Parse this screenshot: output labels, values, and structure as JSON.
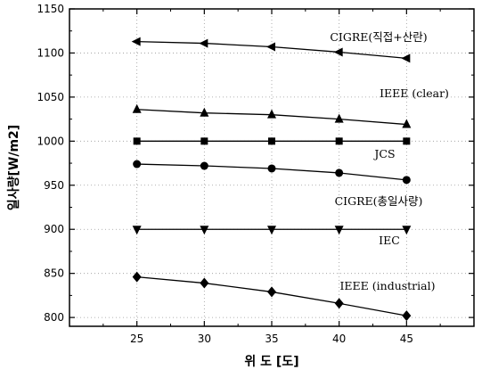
{
  "chart_data": {
    "type": "line",
    "xlabel": "위 도 [도]",
    "ylabel": "일사량[W/m2]",
    "x": [
      25,
      30,
      35,
      40,
      45
    ],
    "xlim": [
      20,
      50
    ],
    "ylim": [
      790,
      1150
    ],
    "xticks": [
      "25",
      "30",
      "35",
      "40",
      "45"
    ],
    "yticks": [
      "800",
      "850",
      "900",
      "950",
      "1000",
      "1050",
      "1100",
      "1150"
    ],
    "grid": true,
    "series": [
      {
        "name": "CIGRE(직접+산란)",
        "marker": "triangle-left",
        "values": [
          1113,
          1111,
          1107,
          1101,
          1094
        ]
      },
      {
        "name": "IEEE (clear)",
        "marker": "triangle-up",
        "values": [
          1036,
          1032,
          1030,
          1025,
          1019
        ]
      },
      {
        "name": "JCS",
        "marker": "square",
        "values": [
          1000,
          1000,
          1000,
          1000,
          1000
        ]
      },
      {
        "name": "CIGRE(총일사량)",
        "marker": "circle",
        "values": [
          974,
          972,
          969,
          964,
          956
        ]
      },
      {
        "name": "IEC",
        "marker": "triangle-down",
        "values": [
          900,
          900,
          900,
          900,
          900
        ]
      },
      {
        "name": "IEEE (industrial)",
        "marker": "diamond",
        "values": [
          846,
          839,
          829,
          816,
          802
        ]
      }
    ]
  }
}
